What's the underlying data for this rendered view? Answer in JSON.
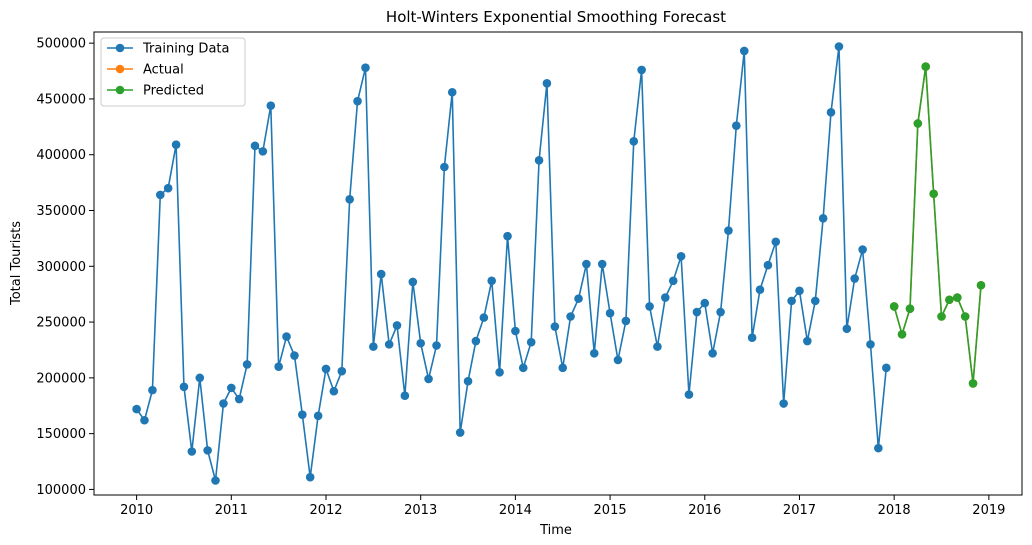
{
  "chart_data": {
    "type": "line",
    "title": "Holt-Winters Exponential Smoothing Forecast",
    "xlabel": "Time",
    "ylabel": "Total Tourists",
    "xlim": [
      2009.55,
      2019.35
    ],
    "ylim": [
      95000,
      510000
    ],
    "x_ticks": [
      2010,
      2011,
      2012,
      2013,
      2014,
      2015,
      2016,
      2017,
      2018,
      2019
    ],
    "x_tick_labels": [
      "2010",
      "2011",
      "2012",
      "2013",
      "2014",
      "2015",
      "2016",
      "2017",
      "2018",
      "2019"
    ],
    "y_ticks": [
      100000,
      150000,
      200000,
      250000,
      300000,
      350000,
      400000,
      450000,
      500000
    ],
    "y_tick_labels": [
      "100000",
      "150000",
      "200000",
      "250000",
      "300000",
      "350000",
      "400000",
      "450000",
      "500000"
    ],
    "grid": false,
    "legend_position": "top-left",
    "series": [
      {
        "name": "Training Data",
        "color": "#1f77b4",
        "marker": "circle",
        "x": [
          2010.0,
          2010.083,
          2010.167,
          2010.25,
          2010.333,
          2010.417,
          2010.5,
          2010.583,
          2010.667,
          2010.75,
          2010.833,
          2010.917,
          2011.0,
          2011.083,
          2011.167,
          2011.25,
          2011.333,
          2011.417,
          2011.5,
          2011.583,
          2011.667,
          2011.75,
          2011.833,
          2011.917,
          2012.0,
          2012.083,
          2012.167,
          2012.25,
          2012.333,
          2012.417,
          2012.5,
          2012.583,
          2012.667,
          2012.75,
          2012.833,
          2012.917,
          2013.0,
          2013.083,
          2013.167,
          2013.25,
          2013.333,
          2013.417,
          2013.5,
          2013.583,
          2013.667,
          2013.75,
          2013.833,
          2013.917,
          2014.0,
          2014.083,
          2014.167,
          2014.25,
          2014.333,
          2014.417,
          2014.5,
          2014.583,
          2014.667,
          2014.75,
          2014.833,
          2014.917,
          2015.0,
          2015.083,
          2015.167,
          2015.25,
          2015.333,
          2015.417,
          2015.5,
          2015.583,
          2015.667,
          2015.75,
          2015.833,
          2015.917,
          2016.0,
          2016.083,
          2016.167,
          2016.25,
          2016.333,
          2016.417,
          2016.5,
          2016.583,
          2016.667,
          2016.75,
          2016.833,
          2016.917,
          2017.0,
          2017.083,
          2017.167,
          2017.25,
          2017.333,
          2017.417,
          2017.5,
          2017.583,
          2017.667,
          2017.75,
          2017.833,
          2017.917
        ],
        "y": [
          172000,
          162000,
          189000,
          364000,
          370000,
          409000,
          192000,
          134000,
          200000,
          135000,
          108000,
          177000,
          191000,
          181000,
          212000,
          408000,
          403000,
          444000,
          210000,
          237000,
          220000,
          167000,
          111000,
          166000,
          208000,
          188000,
          206000,
          360000,
          448000,
          478000,
          228000,
          293000,
          230000,
          247000,
          184000,
          286000,
          231000,
          199000,
          229000,
          389000,
          456000,
          151000,
          197000,
          233000,
          254000,
          287000,
          205000,
          327000,
          242000,
          209000,
          232000,
          395000,
          464000,
          246000,
          209000,
          255000,
          271000,
          302000,
          222000,
          302000,
          258000,
          216000,
          251000,
          412000,
          476000,
          264000,
          228000,
          272000,
          287000,
          309000,
          185000,
          259000,
          267000,
          222000,
          259000,
          332000,
          426000,
          493000,
          236000,
          279000,
          301000,
          322000,
          177000,
          269000,
          278000,
          233000,
          269000,
          343000,
          438000,
          497000,
          244000,
          289000,
          315000,
          230000,
          137000,
          209000
        ]
      },
      {
        "name": "Actual",
        "color": "#ff7f0e",
        "marker": "circle",
        "x": [
          2018.0,
          2018.083,
          2018.167,
          2018.25,
          2018.333,
          2018.417,
          2018.5,
          2018.583,
          2018.667,
          2018.75,
          2018.833,
          2018.917
        ],
        "y": [
          264000,
          239000,
          262000,
          428000,
          479000,
          365000,
          255000,
          270000,
          272000,
          255000,
          195000,
          283000
        ]
      },
      {
        "name": "Predicted",
        "color": "#2ca02c",
        "marker": "circle",
        "x": [
          2018.0,
          2018.083,
          2018.167,
          2018.25,
          2018.333,
          2018.417,
          2018.5,
          2018.583,
          2018.667,
          2018.75,
          2018.833,
          2018.917
        ],
        "y": [
          264000,
          239000,
          262000,
          428000,
          479000,
          365000,
          255000,
          270000,
          272000,
          255000,
          195000,
          283000
        ]
      }
    ]
  }
}
